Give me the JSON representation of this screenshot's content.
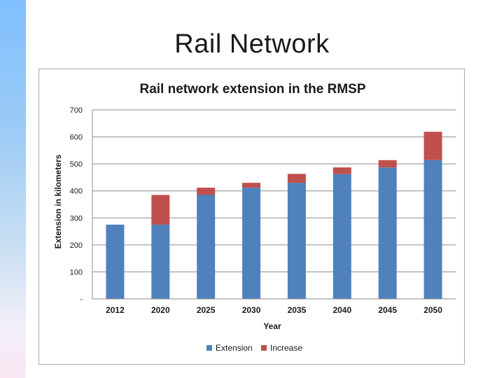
{
  "slide": {
    "title": "Rail Network"
  },
  "chart_data": {
    "type": "bar",
    "stacked": true,
    "title": "Rail network extension in the RMSP",
    "xlabel": "Year",
    "ylabel": "Extension in kilometers",
    "categories": [
      "2012",
      "2020",
      "2025",
      "2030",
      "2035",
      "2040",
      "2045",
      "2050"
    ],
    "series": [
      {
        "name": "Extension",
        "color": "#4f81bd",
        "values": [
          275,
          275,
          385,
          412,
          430,
          462,
          487,
          514
        ]
      },
      {
        "name": "Increase",
        "color": "#c0504d",
        "values": [
          0,
          110,
          27,
          18,
          33,
          25,
          27,
          105
        ]
      }
    ],
    "ylim": [
      0,
      700
    ],
    "yticks": [
      0,
      100,
      200,
      300,
      400,
      500,
      600,
      700
    ],
    "ytick_labels": [
      "-",
      "100",
      "200",
      "300",
      "400",
      "500",
      "600",
      "700"
    ],
    "grid": true,
    "legend_position": "bottom"
  }
}
